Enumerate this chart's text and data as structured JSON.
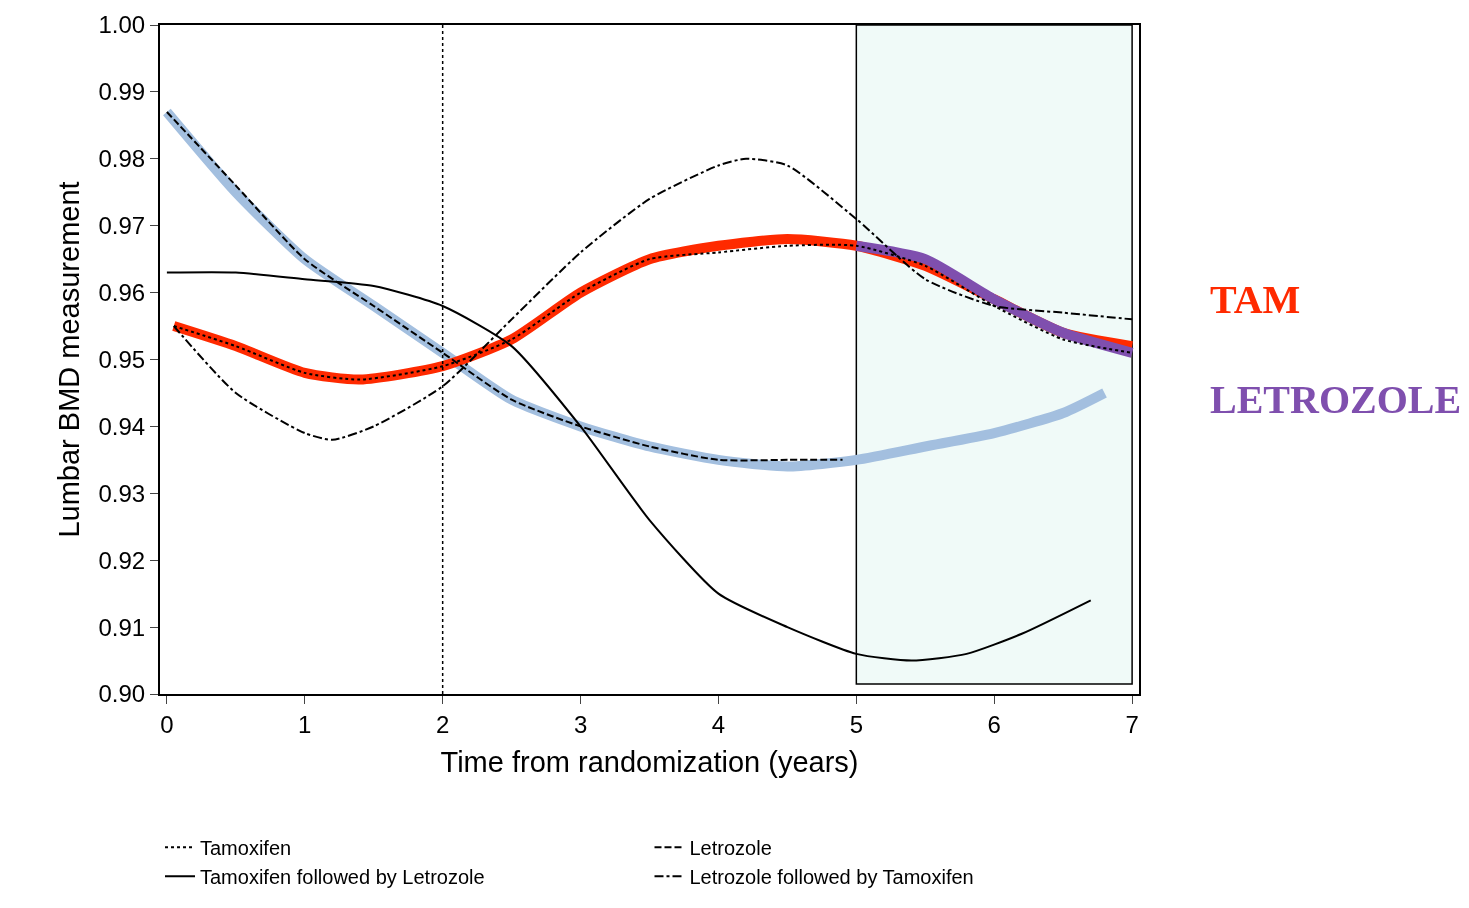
{
  "chart_data": {
    "type": "line",
    "xlabel": "Time from randomization (years)",
    "ylabel": "Lumbar BMD measurement",
    "xlim": [
      -0.05,
      7.05
    ],
    "xticks": [
      0,
      1,
      2,
      3,
      4,
      5,
      6,
      7
    ],
    "ylim": [
      0.9,
      1.0
    ],
    "yticks": [
      {
        "value": 0.9,
        "label": "0.90"
      },
      {
        "value": 0.91,
        "label": "0.91"
      },
      {
        "value": 0.92,
        "label": "0.92"
      },
      {
        "value": 0.93,
        "label": "0.93"
      },
      {
        "value": 0.94,
        "label": "0.94"
      },
      {
        "value": 0.95,
        "label": "0.95"
      },
      {
        "value": 0.96,
        "label": "0.96"
      },
      {
        "value": 0.97,
        "label": "0.97"
      },
      {
        "value": 0.98,
        "label": "0.98"
      },
      {
        "value": 0.99,
        "label": "0.99"
      },
      {
        "value": 1.0,
        "label": "1.00"
      }
    ],
    "grid": false,
    "legend": "bottom",
    "marker": "none",
    "ref_lines": [
      {
        "axis": "x",
        "value": 2,
        "line_style": "dotted",
        "color": "#000000"
      }
    ],
    "bands": [
      {
        "axis": "x",
        "from": 5,
        "to": 7,
        "color": "#f0faf8"
      }
    ],
    "series": [
      {
        "color": "#a3bfdf",
        "x": [
          0,
          0.5,
          1,
          1.5,
          2,
          2.5,
          3,
          3.5,
          4,
          4.5,
          5,
          5.5,
          6,
          6.5,
          6.8
        ],
        "values": [
          0.987,
          0.975,
          0.965,
          0.958,
          0.951,
          0.944,
          0.94,
          0.937,
          0.935,
          0.934,
          0.935,
          0.937,
          0.939,
          0.942,
          0.945
        ]
      },
      {
        "name": "TAM",
        "color": "#ff2a00",
        "x": [
          0.05,
          0.5,
          1,
          1.4,
          2,
          2.5,
          3,
          3.5,
          4,
          4.5,
          5,
          5.5,
          6,
          6.5,
          7
        ],
        "values": [
          0.955,
          0.952,
          0.948,
          0.947,
          0.949,
          0.953,
          0.96,
          0.965,
          0.967,
          0.968,
          0.967,
          0.964,
          0.959,
          0.954,
          0.952
        ]
      },
      {
        "name": "LETROZOLE",
        "color": "#7f4fae",
        "x": [
          5,
          5.5,
          6,
          6.5,
          7
        ],
        "values": [
          0.967,
          0.965,
          0.959,
          0.954,
          0.951
        ]
      },
      {
        "name": "Tamoxifen",
        "color": "#000000",
        "line_style": "dotted",
        "x": [
          0.05,
          0.5,
          1,
          1.4,
          2,
          2.5,
          3,
          3.5,
          4,
          4.5,
          5,
          5.5,
          6,
          6.5,
          7
        ],
        "values": [
          0.955,
          0.952,
          0.948,
          0.947,
          0.949,
          0.953,
          0.96,
          0.965,
          0.966,
          0.967,
          0.967,
          0.964,
          0.958,
          0.953,
          0.951
        ]
      },
      {
        "name": "Letrozole",
        "color": "#000000",
        "line_style": "dashed",
        "x": [
          0,
          0.5,
          1,
          1.5,
          2,
          2.5,
          3,
          3.5,
          4,
          4.5,
          4.9
        ],
        "values": [
          0.987,
          0.976,
          0.965,
          0.958,
          0.951,
          0.944,
          0.94,
          0.937,
          0.935,
          0.935,
          0.935
        ]
      },
      {
        "name": "Tamoxifen followed by Letrozole",
        "color": "#000000",
        "line_style": "solid",
        "x": [
          0,
          0.5,
          1,
          1.5,
          2,
          2.5,
          3,
          3.5,
          4,
          4.5,
          5,
          5.4,
          5.8,
          6.2,
          6.7
        ],
        "values": [
          0.963,
          0.963,
          0.962,
          0.961,
          0.958,
          0.952,
          0.94,
          0.926,
          0.915,
          0.91,
          0.906,
          0.905,
          0.906,
          0.909,
          0.914
        ]
      },
      {
        "name": "Letrozole followed by Tamoxifen",
        "color": "#000000",
        "line_style": "dashdot",
        "x": [
          0.05,
          0.5,
          1,
          1.2,
          1.5,
          2,
          2.5,
          3,
          3.5,
          4,
          4.2,
          4.5,
          5,
          5.5,
          6,
          6.5,
          7
        ],
        "values": [
          0.955,
          0.945,
          0.939,
          0.938,
          0.94,
          0.946,
          0.956,
          0.966,
          0.974,
          0.979,
          0.98,
          0.979,
          0.971,
          0.962,
          0.958,
          0.957,
          0.956
        ]
      }
    ]
  }
}
